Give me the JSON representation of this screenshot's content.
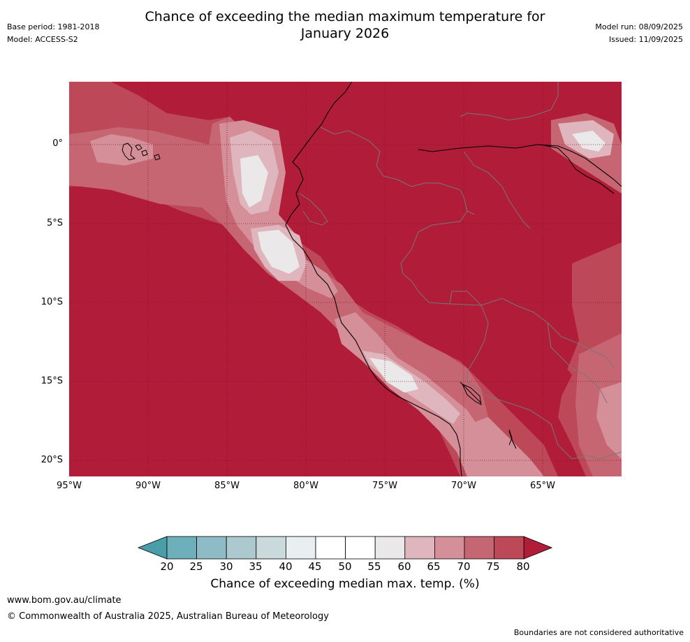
{
  "title_line1": "Chance of exceeding the median maximum temperature for",
  "title_line2": "January 2026",
  "meta_left": {
    "base_period": "Base period: 1981-2018",
    "model": "Model: ACCESS-S2"
  },
  "meta_right": {
    "model_run": "Model run: 08/09/2025",
    "issued": "Issued: 11/09/2025"
  },
  "map": {
    "lat_labels": [
      "0°",
      "5°S",
      "10°S",
      "15°S",
      "20°S"
    ],
    "lon_labels": [
      "95°W",
      "90°W",
      "85°W",
      "80°W",
      "75°W",
      "70°W",
      "65°W"
    ],
    "background_color": "#b11c38"
  },
  "colorbar": {
    "title": "Chance of exceeding median max. temp. (%)",
    "ticks": [
      "20",
      "25",
      "30",
      "35",
      "40",
      "45",
      "50",
      "55",
      "60",
      "65",
      "70",
      "75",
      "80"
    ],
    "colors": [
      "#4a9eaa",
      "#6dafbb",
      "#8dbcc6",
      "#abc9cf",
      "#c9d9dc",
      "#e9eef0",
      "#ffffff",
      "#ffffff",
      "#ebe8e9",
      "#dfb6bd",
      "#d58f99",
      "#c76673",
      "#bd4858",
      "#b11c38"
    ]
  },
  "footer": {
    "url": "www.bom.gov.au/climate",
    "copyright": "© Commonwealth of Australia 2025, Australian Bureau of Meteorology",
    "note": "Boundaries are not considered authoritative"
  }
}
